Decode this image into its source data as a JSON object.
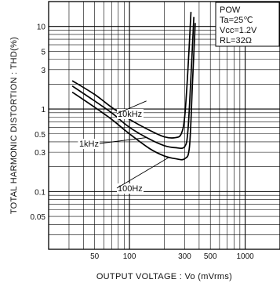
{
  "chart_data": {
    "type": "line",
    "xlabel": "OUTPUT VOLTAGE : Vo (mVrms)",
    "ylabel": "TOTAL HARMONIC DISTORTION : THD(%)",
    "xscale": "log",
    "yscale": "log",
    "xlim": [
      20,
      2000
    ],
    "ylim": [
      0.02,
      20
    ],
    "x_ticks": [
      50,
      100,
      300,
      500,
      1000
    ],
    "y_ticks": [
      0.05,
      0.1,
      0.3,
      0.5,
      1,
      3,
      5,
      10
    ],
    "grid": true,
    "legend_box": {
      "position": "top-right",
      "lines": [
        "POW",
        "Ta=25℃",
        "Vcc=1.2V",
        "RL=32Ω"
      ]
    },
    "series": [
      {
        "name": "10kHz",
        "x": [
          32,
          50,
          70,
          100,
          150,
          200,
          250,
          280,
          300,
          320,
          340
        ],
        "y": [
          2.2,
          1.5,
          1.05,
          0.75,
          0.55,
          0.46,
          0.45,
          0.5,
          0.8,
          3,
          15
        ]
      },
      {
        "name": "1kHz",
        "x": [
          32,
          50,
          70,
          100,
          150,
          200,
          250,
          300,
          320,
          340,
          360
        ],
        "y": [
          1.9,
          1.25,
          0.9,
          0.6,
          0.43,
          0.36,
          0.34,
          0.35,
          0.55,
          2.5,
          13
        ]
      },
      {
        "name": "100Hz",
        "x": [
          32,
          50,
          70,
          100,
          150,
          200,
          250,
          300,
          330,
          350,
          370
        ],
        "y": [
          1.6,
          1.05,
          0.75,
          0.5,
          0.33,
          0.27,
          0.25,
          0.25,
          0.35,
          2,
          11
        ]
      }
    ]
  }
}
